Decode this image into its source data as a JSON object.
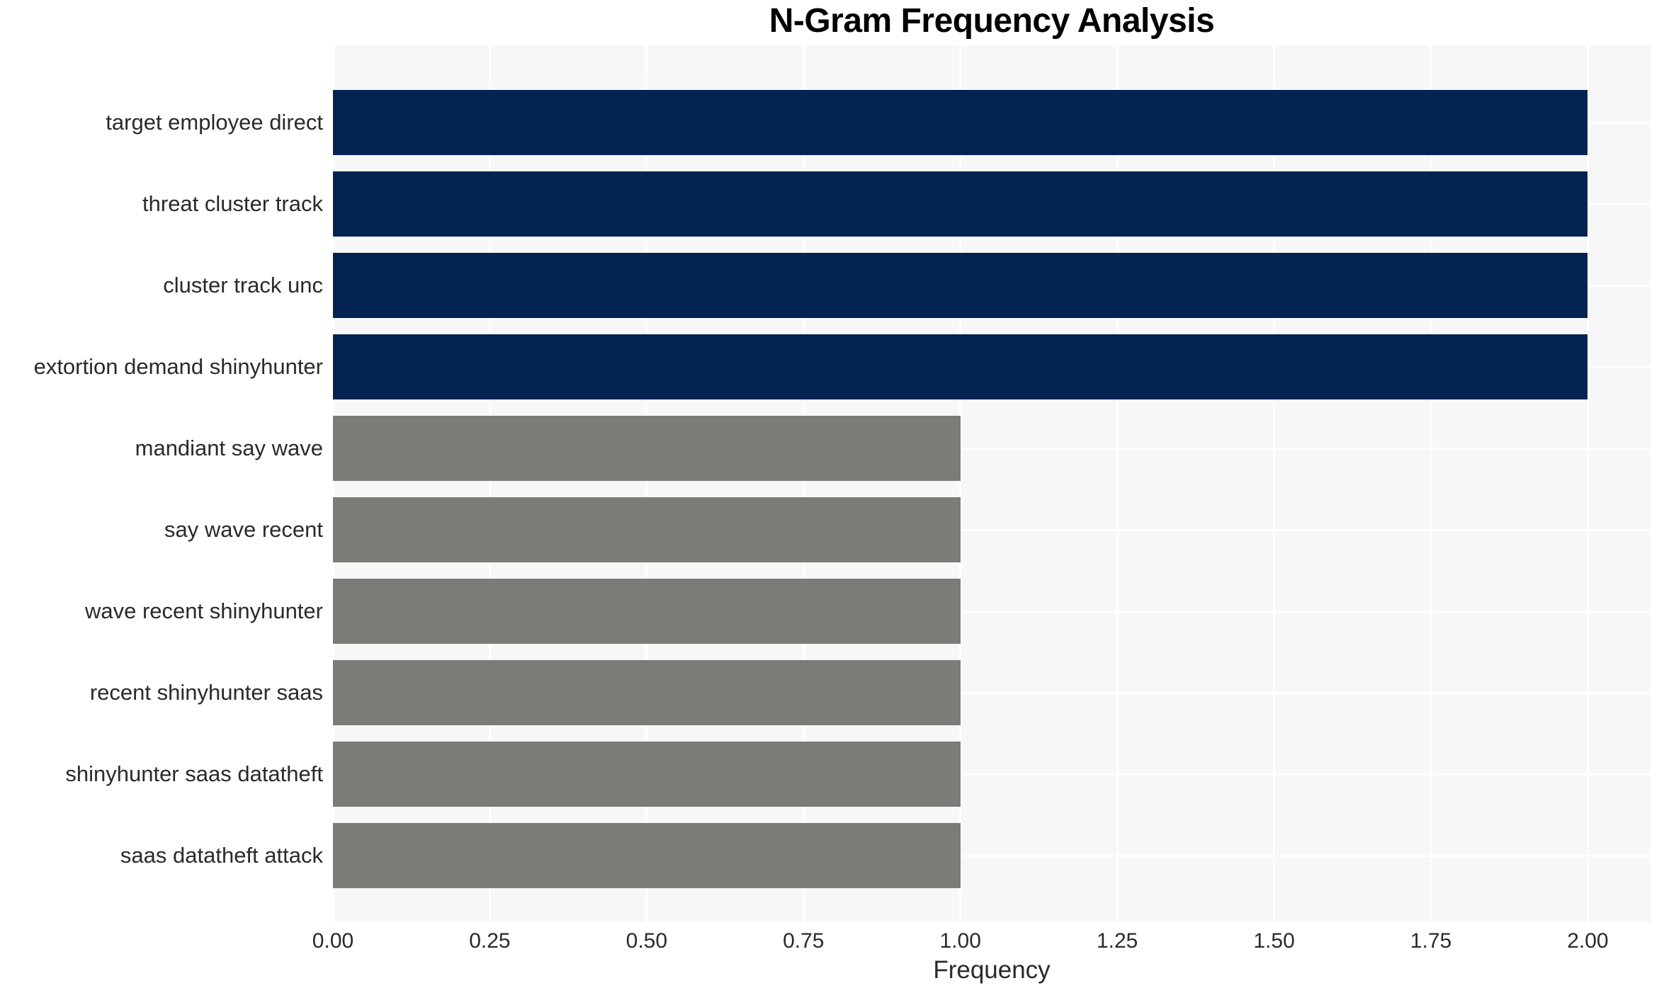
{
  "page": {
    "background": "#ffffff"
  },
  "chart_data": {
    "type": "bar",
    "orientation": "horizontal",
    "title": "N-Gram Frequency Analysis",
    "xlabel": "Frequency",
    "ylabel": "",
    "categories": [
      "target employee direct",
      "threat cluster track",
      "cluster track unc",
      "extortion demand shinyhunter",
      "mandiant say wave",
      "say wave recent",
      "wave recent shinyhunter",
      "recent shinyhunter saas",
      "shinyhunter saas datatheft",
      "saas datatheft attack"
    ],
    "values": [
      2,
      2,
      2,
      2,
      1,
      1,
      1,
      1,
      1,
      1
    ],
    "bar_colors": [
      "#042350",
      "#042350",
      "#042350",
      "#042350",
      "#7b7b78",
      "#7b7b78",
      "#7b7b78",
      "#7b7b78",
      "#7b7b78",
      "#7b7b78"
    ],
    "xlim": [
      0,
      2.1
    ],
    "xticks": [
      0,
      0.25,
      0.5,
      0.75,
      1,
      1.25,
      1.5,
      1.75,
      2
    ],
    "xtick_labels": [
      "0.00",
      "0.25",
      "0.50",
      "0.75",
      "1.00",
      "1.25",
      "1.50",
      "1.75",
      "2.00"
    ],
    "grid": true,
    "legend": false,
    "styles": {
      "plot_bg": "#f7f7f8",
      "grid_color": "#ffffff",
      "text_color": "#2a2a2a",
      "title_color": "#000000"
    }
  }
}
